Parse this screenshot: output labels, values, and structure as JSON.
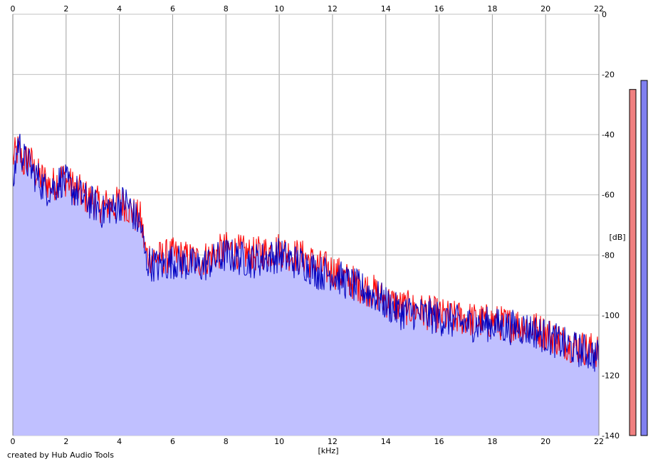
{
  "chart_data": {
    "type": "area",
    "xlabel": "[kHz]",
    "ylabel": "[dB]",
    "xlim": [
      0,
      22
    ],
    "ylim": [
      -140,
      0
    ],
    "x_ticks": [
      "0",
      "2",
      "4",
      "6",
      "8",
      "10",
      "12",
      "14",
      "16",
      "18",
      "20",
      "22"
    ],
    "y_ticks": [
      "0",
      "-20",
      "-40",
      "-60",
      "-80",
      "-100",
      "-120",
      "-140"
    ],
    "grid": true,
    "series": [
      {
        "color": "#ff0000",
        "x": [
          0.0,
          0.2,
          0.4,
          0.6,
          0.8,
          1.0,
          1.2,
          1.4,
          1.6,
          1.8,
          2.0,
          2.2,
          2.4,
          2.6,
          2.8,
          3.0,
          3.2,
          3.4,
          3.6,
          3.8,
          4.0,
          4.2,
          4.4,
          4.6,
          4.8,
          5.0,
          5.5,
          6.0,
          6.5,
          7.0,
          7.5,
          8.0,
          8.5,
          9.0,
          9.5,
          10.0,
          10.5,
          11.0,
          11.5,
          12.0,
          12.5,
          13.0,
          13.5,
          14.0,
          14.5,
          15.0,
          15.5,
          16.0,
          16.5,
          17.0,
          17.5,
          18.0,
          18.5,
          19.0,
          19.5,
          20.0,
          20.5,
          21.0,
          21.5,
          22.0
        ],
        "y": [
          -48,
          -45,
          -50,
          -47,
          -52,
          -54,
          -55,
          -57,
          -56,
          -54,
          -55,
          -57,
          -58,
          -60,
          -61,
          -62,
          -63,
          -64,
          -63,
          -64,
          -62,
          -63,
          -65,
          -67,
          -68,
          -80,
          -81,
          -80,
          -81,
          -82,
          -80,
          -78,
          -79,
          -80,
          -79,
          -78,
          -80,
          -81,
          -84,
          -85,
          -88,
          -90,
          -92,
          -95,
          -97,
          -98,
          -99,
          -100,
          -101,
          -101,
          -102,
          -102,
          -103,
          -103,
          -104,
          -106,
          -108,
          -110,
          -111,
          -112
        ]
      },
      {
        "color": "#0000c0",
        "x": [
          0.0,
          0.2,
          0.4,
          0.6,
          0.8,
          1.0,
          1.2,
          1.4,
          1.6,
          1.8,
          2.0,
          2.2,
          2.4,
          2.6,
          2.8,
          3.0,
          3.2,
          3.4,
          3.6,
          3.8,
          4.0,
          4.2,
          4.4,
          4.6,
          4.8,
          5.0,
          5.5,
          6.0,
          6.5,
          7.0,
          7.5,
          8.0,
          8.5,
          9.0,
          9.5,
          10.0,
          10.5,
          11.0,
          11.5,
          12.0,
          12.5,
          13.0,
          13.5,
          14.0,
          14.5,
          15.0,
          15.5,
          16.0,
          16.5,
          17.0,
          17.5,
          18.0,
          18.5,
          19.0,
          19.5,
          20.0,
          20.5,
          21.0,
          21.5,
          22.0
        ],
        "y": [
          -58,
          -42,
          -48,
          -50,
          -53,
          -55,
          -58,
          -58,
          -57,
          -55,
          -56,
          -58,
          -59,
          -61,
          -62,
          -63,
          -64,
          -66,
          -64,
          -65,
          -63,
          -62,
          -64,
          -68,
          -70,
          -82,
          -84,
          -82,
          -83,
          -84,
          -82,
          -80,
          -81,
          -82,
          -81,
          -80,
          -82,
          -83,
          -86,
          -86,
          -89,
          -91,
          -93,
          -96,
          -99,
          -99,
          -100,
          -101,
          -102,
          -103,
          -103,
          -103,
          -104,
          -104,
          -105,
          -107,
          -109,
          -111,
          -112,
          -114
        ]
      }
    ],
    "fill_color": "#c0c0ff",
    "level_meters": [
      {
        "color": "#f08080",
        "level_db": -25
      },
      {
        "color": "#8080f0",
        "level_db": -22
      }
    ]
  },
  "footer": {
    "credit": "created by Hub Audio Tools"
  }
}
